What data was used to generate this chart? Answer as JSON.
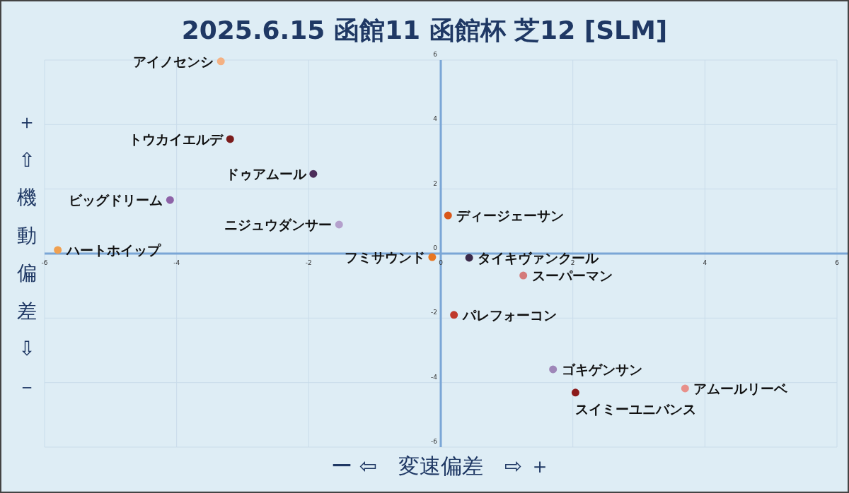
{
  "chart_data": {
    "type": "scatter",
    "title": "2025.6.15 函館11 函館杯 芝12 [SLM]",
    "xlabel": "ー ⇦　変速偏差　⇨ ＋",
    "ylabel": "＋⇧機動偏差⇩－",
    "xlim": [
      -6,
      6
    ],
    "ylim": [
      -6,
      6
    ],
    "xticks": [
      -6,
      -4,
      -2,
      0,
      2,
      4,
      6
    ],
    "yticks": [
      -6,
      -4,
      -2,
      0,
      2,
      4,
      6
    ],
    "grid": true,
    "marker": "circle",
    "series": [
      {
        "name": "アイノセンシ",
        "color": "#f4b183",
        "x": [
          -3.33
        ],
        "values": [
          5.96
        ]
      },
      {
        "name": "トウカイエルデ",
        "color": "#7b1c1c",
        "x": [
          -3.19
        ],
        "values": [
          3.55
        ]
      },
      {
        "name": "ドゥアムール",
        "color": "#4b2d5a",
        "x": [
          -1.93
        ],
        "values": [
          2.47
        ]
      },
      {
        "name": "ビッグドリーム",
        "color": "#8e63a8",
        "x": [
          -4.1
        ],
        "values": [
          1.66
        ]
      },
      {
        "name": "ニジュウダンサー",
        "color": "#b4a0cc",
        "x": [
          -1.54
        ],
        "values": [
          0.9
        ]
      },
      {
        "name": "ハートホイップ",
        "color": "#f0a050",
        "x": [
          -5.8
        ],
        "values": [
          0.11
        ]
      },
      {
        "name": "フミサウンド",
        "color": "#e87722",
        "x": [
          -0.13
        ],
        "values": [
          -0.11
        ]
      },
      {
        "name": "タイキヴァンクール",
        "color": "#3b2a4a",
        "x": [
          0.43
        ],
        "values": [
          -0.13
        ]
      },
      {
        "name": "ディージェーサン",
        "color": "#d9571a",
        "x": [
          0.11
        ],
        "values": [
          1.18
        ]
      },
      {
        "name": "スーパーマン",
        "color": "#d47a7a",
        "x": [
          1.25
        ],
        "values": [
          -0.68
        ]
      },
      {
        "name": "パレフォーコン",
        "color": "#c0392b",
        "x": [
          0.2
        ],
        "values": [
          -1.9
        ]
      },
      {
        "name": "ゴキゲンサン",
        "color": "#9e86b8",
        "x": [
          1.7
        ],
        "values": [
          -3.59
        ]
      },
      {
        "name": "スイミーユニバンス",
        "color": "#8b1a1a",
        "x": [
          2.04
        ],
        "values": [
          -4.31
        ]
      },
      {
        "name": "アムールリーベ",
        "color": "#e8908a",
        "x": [
          3.7
        ],
        "values": [
          -4.18
        ]
      }
    ]
  }
}
